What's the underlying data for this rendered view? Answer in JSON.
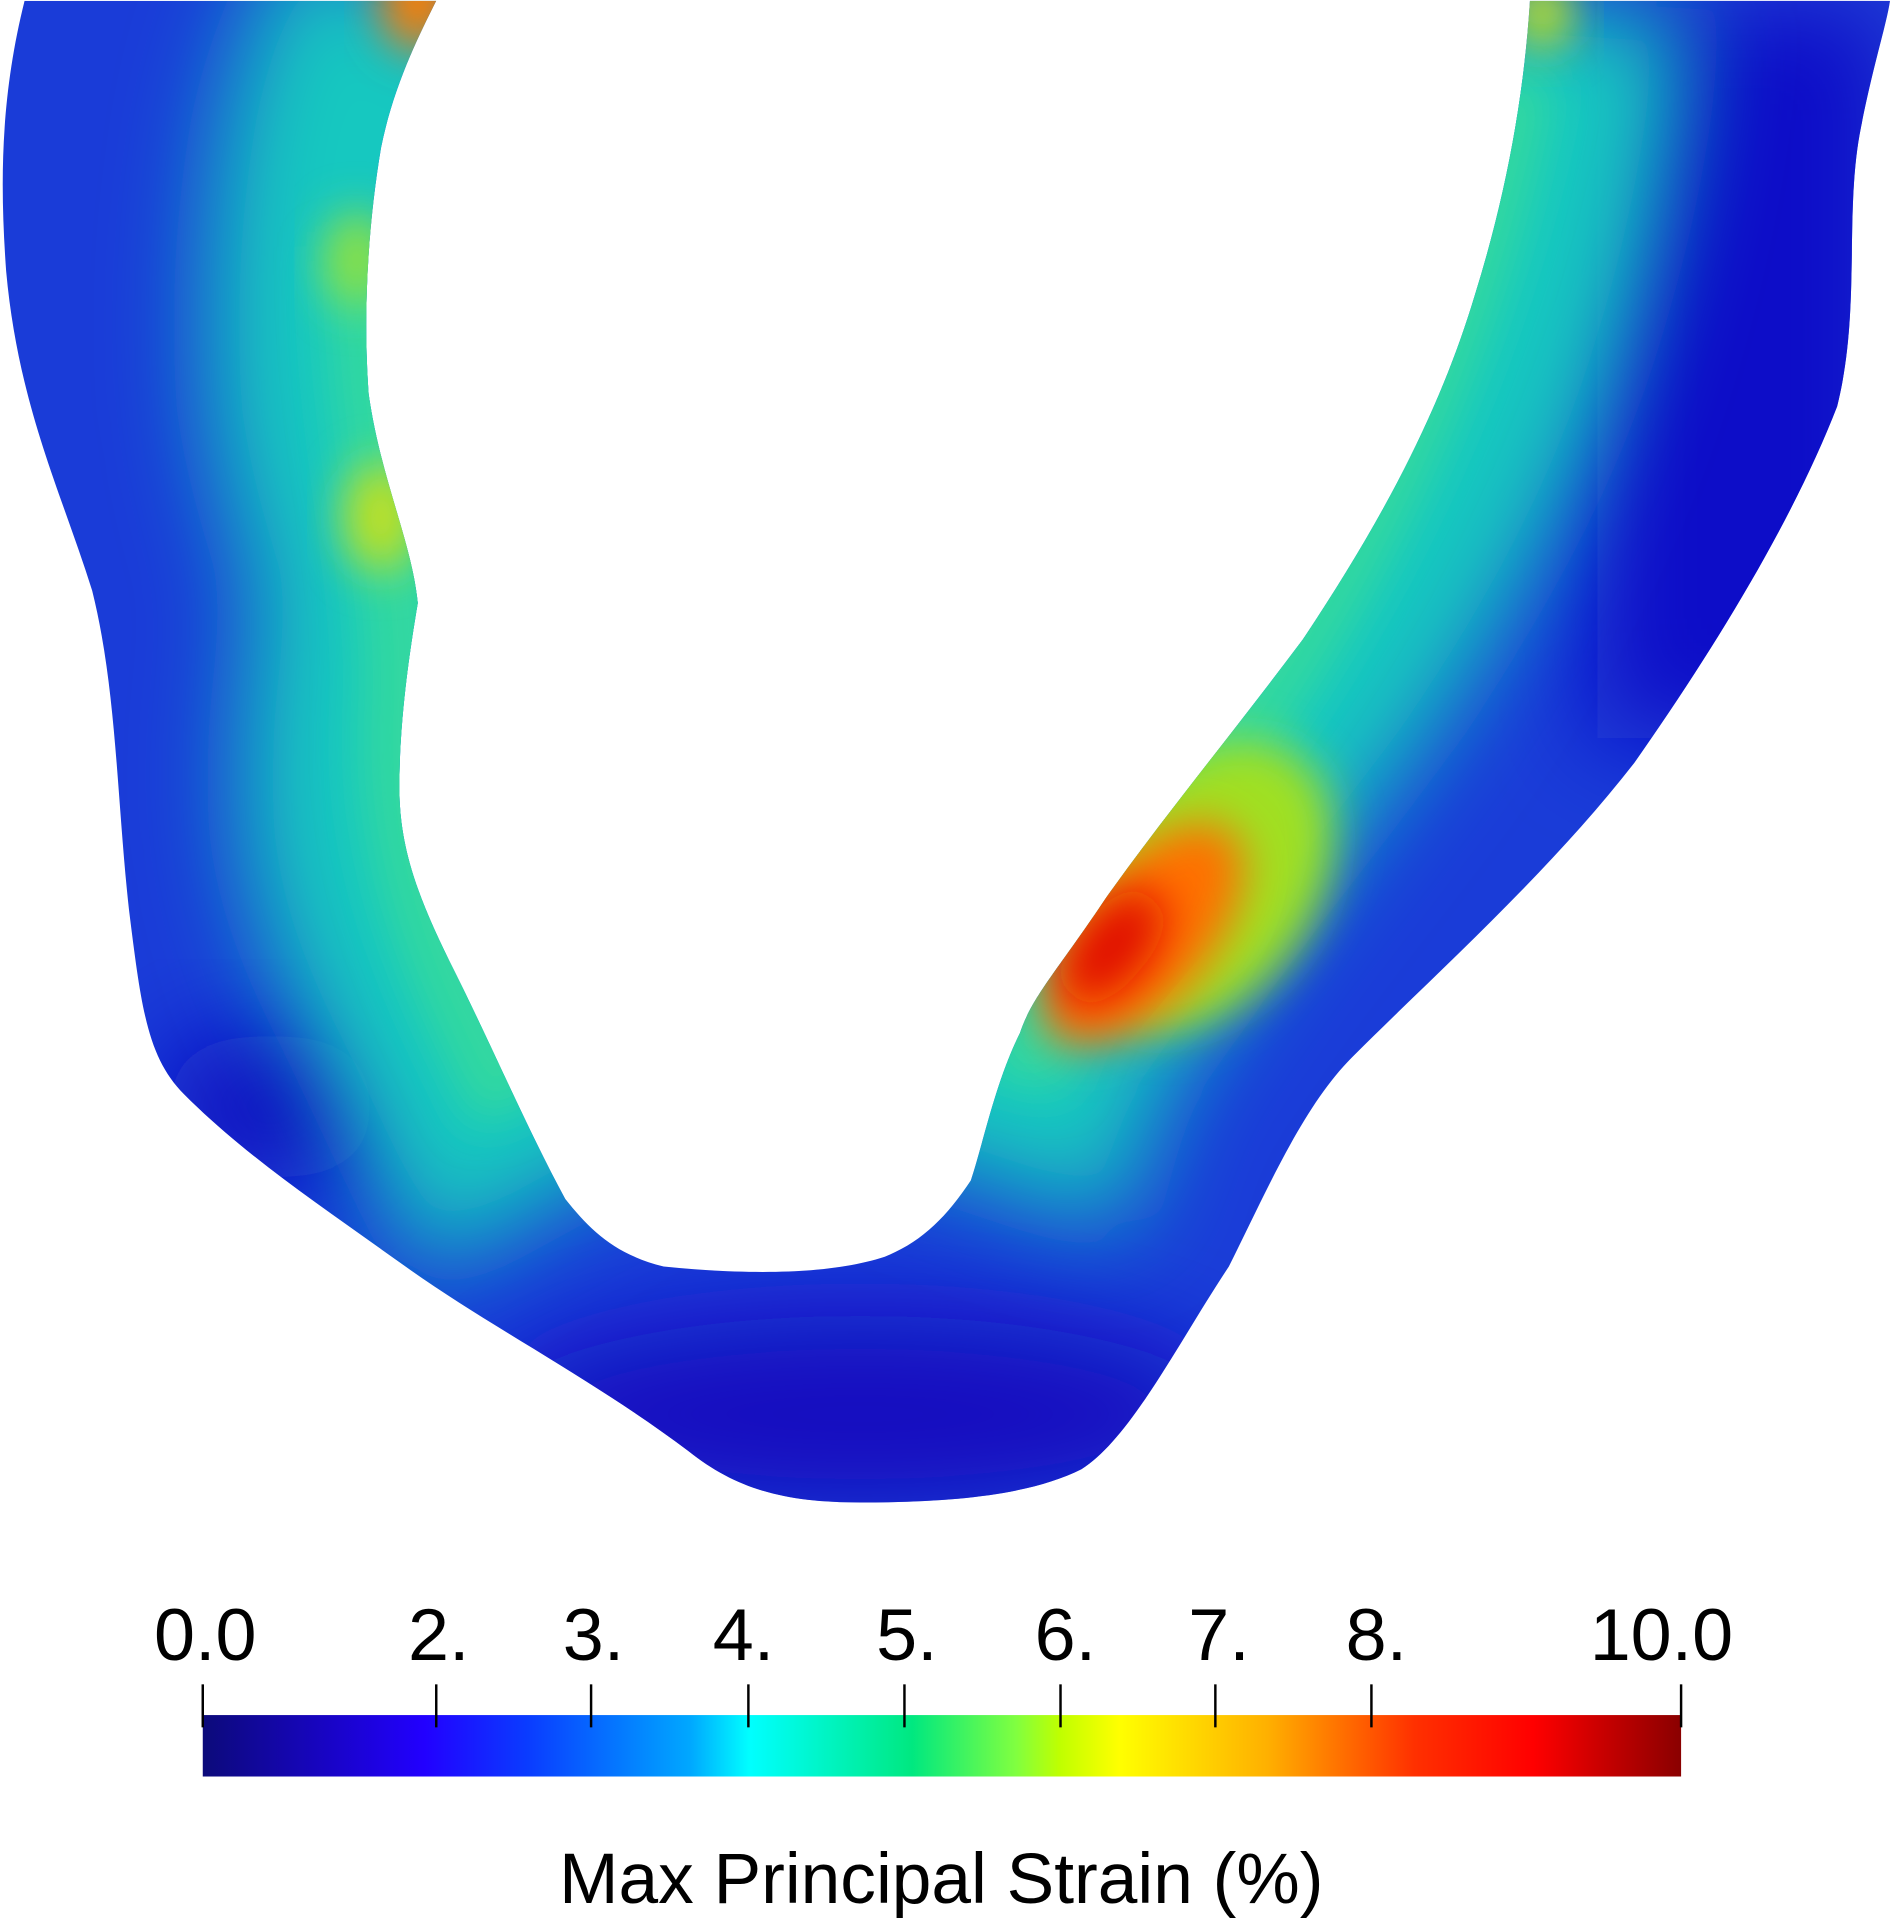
{
  "colorbar": {
    "title": "Max Principal Strain (%)",
    "ticks": [
      "0.0",
      "2.",
      "3.",
      "4.",
      "5.",
      "6.",
      "7.",
      "8.",
      "10.0"
    ]
  }
}
